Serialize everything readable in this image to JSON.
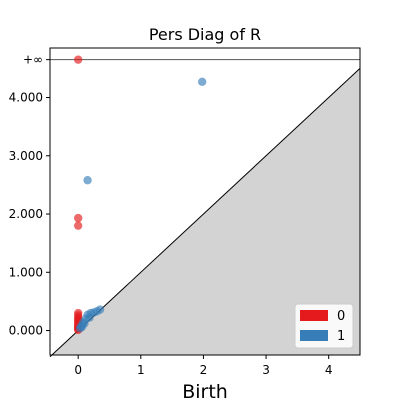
{
  "chart_data": {
    "type": "scatter",
    "title": "Pers Diag of R",
    "xlabel": "Birth",
    "ylabel": "",
    "xlim": [
      -0.45,
      4.5
    ],
    "ylim": [
      -0.42,
      4.85
    ],
    "infinity_value": 4.65,
    "infinity_label": "+∞",
    "x_ticks": [
      {
        "value": 0,
        "label": "0"
      },
      {
        "value": 1,
        "label": "1"
      },
      {
        "value": 2,
        "label": "2"
      },
      {
        "value": 3,
        "label": "3"
      },
      {
        "value": 4,
        "label": "4"
      }
    ],
    "y_ticks": [
      {
        "value": 0,
        "label": "0.000"
      },
      {
        "value": 1,
        "label": "1.000"
      },
      {
        "value": 2,
        "label": "2.000"
      },
      {
        "value": 3,
        "label": "3.000"
      },
      {
        "value": 4,
        "label": "4.000"
      }
    ],
    "legend_position": "lower-right",
    "series": [
      {
        "name": "0",
        "color": "#e41a1c",
        "points": [
          [
            0,
            4.65
          ],
          [
            0,
            1.93
          ],
          [
            0,
            1.8
          ],
          [
            0,
            0.3
          ],
          [
            0,
            0.26
          ],
          [
            0,
            0.22
          ],
          [
            0,
            0.19
          ],
          [
            0,
            0.16
          ],
          [
            0,
            0.13
          ],
          [
            0,
            0.1
          ],
          [
            0,
            0.07
          ],
          [
            0,
            0.05
          ],
          [
            0,
            0.03
          ],
          [
            0,
            0.01
          ]
        ]
      },
      {
        "name": "1",
        "color": "#377eb8",
        "points": [
          [
            1.98,
            4.27
          ],
          [
            0.15,
            2.58
          ],
          [
            0.35,
            0.36
          ],
          [
            0.3,
            0.33
          ],
          [
            0.25,
            0.31
          ],
          [
            0.2,
            0.3
          ],
          [
            0.15,
            0.27
          ],
          [
            0.18,
            0.22
          ],
          [
            0.12,
            0.2
          ],
          [
            0.08,
            0.14
          ],
          [
            0.1,
            0.12
          ],
          [
            0.05,
            0.08
          ],
          [
            0.06,
            0.06
          ],
          [
            0.03,
            0.04
          ]
        ]
      }
    ]
  }
}
